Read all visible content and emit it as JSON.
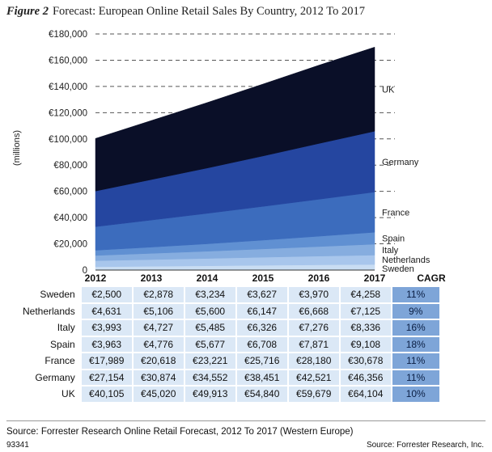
{
  "figure": {
    "label": "Figure 2",
    "title": "Forecast: European Online Retail Sales By Country, 2012 To 2017"
  },
  "chart_data": {
    "type": "area",
    "title": "Forecast: European Online Retail Sales By Country, 2012 To 2017",
    "ylabel": "(millions)",
    "ylim": [
      0,
      180000
    ],
    "yticks": [
      0,
      20000,
      40000,
      60000,
      80000,
      100000,
      120000,
      140000,
      160000,
      180000
    ],
    "ytick_labels": [
      "0",
      "€20,000",
      "€40,000",
      "€60,000",
      "€80,000",
      "€100,000",
      "€120,000",
      "€140,000",
      "€160,000",
      "€180,000"
    ],
    "stacked": true,
    "x": [
      "2012",
      "2013",
      "2014",
      "2015",
      "2016",
      "2017"
    ],
    "series": [
      {
        "name": "Sweden",
        "values": [
          2500,
          2878,
          3234,
          3627,
          3970,
          4258
        ],
        "color": "#c9ddf3"
      },
      {
        "name": "Netherlands",
        "values": [
          4631,
          5106,
          5600,
          6147,
          6668,
          7125
        ],
        "color": "#a8c6ec"
      },
      {
        "name": "Italy",
        "values": [
          3993,
          4727,
          5485,
          6326,
          7276,
          8336
        ],
        "color": "#86addf"
      },
      {
        "name": "Spain",
        "values": [
          3963,
          4776,
          5677,
          6708,
          7871,
          9108
        ],
        "color": "#6090d2"
      },
      {
        "name": "France",
        "values": [
          17989,
          20618,
          23221,
          25716,
          28180,
          30678
        ],
        "color": "#3c6cbd"
      },
      {
        "name": "Germany",
        "values": [
          27154,
          30874,
          34552,
          38451,
          42521,
          46356
        ],
        "color": "#2546a0"
      },
      {
        "name": "UK",
        "values": [
          40105,
          45020,
          49913,
          54840,
          59679,
          64104
        ],
        "color": "#0a0f28"
      }
    ],
    "grid": "dashed horizontal",
    "legend": "right (labels beside each band)"
  },
  "table": {
    "cagr_header": "CAGR",
    "rows": [
      {
        "label": "Sweden",
        "values": [
          "€2,500",
          "€2,878",
          "€3,234",
          "€3,627",
          "€3,970",
          "€4,258"
        ],
        "cagr": "11%"
      },
      {
        "label": "Netherlands",
        "values": [
          "€4,631",
          "€5,106",
          "€5,600",
          "€6,147",
          "€6,668",
          "€7,125"
        ],
        "cagr": "9%"
      },
      {
        "label": "Italy",
        "values": [
          "€3,993",
          "€4,727",
          "€5,485",
          "€6,326",
          "€7,276",
          "€8,336"
        ],
        "cagr": "16%"
      },
      {
        "label": "Spain",
        "values": [
          "€3,963",
          "€4,776",
          "€5,677",
          "€6,708",
          "€7,871",
          "€9,108"
        ],
        "cagr": "18%"
      },
      {
        "label": "France",
        "values": [
          "€17,989",
          "€20,618",
          "€23,221",
          "€25,716",
          "€28,180",
          "€30,678"
        ],
        "cagr": "11%"
      },
      {
        "label": "Germany",
        "values": [
          "€27,154",
          "€30,874",
          "€34,552",
          "€38,451",
          "€42,521",
          "€46,356"
        ],
        "cagr": "11%"
      },
      {
        "label": "UK",
        "values": [
          "€40,105",
          "€45,020",
          "€49,913",
          "€54,840",
          "€59,679",
          "€64,104"
        ],
        "cagr": "10%"
      }
    ]
  },
  "footer": {
    "source_line": "Source: Forrester Research Online Retail Forecast, 2012 To 2017 (Western Europe)",
    "code": "93341",
    "credit": "Source: Forrester Research, Inc."
  }
}
